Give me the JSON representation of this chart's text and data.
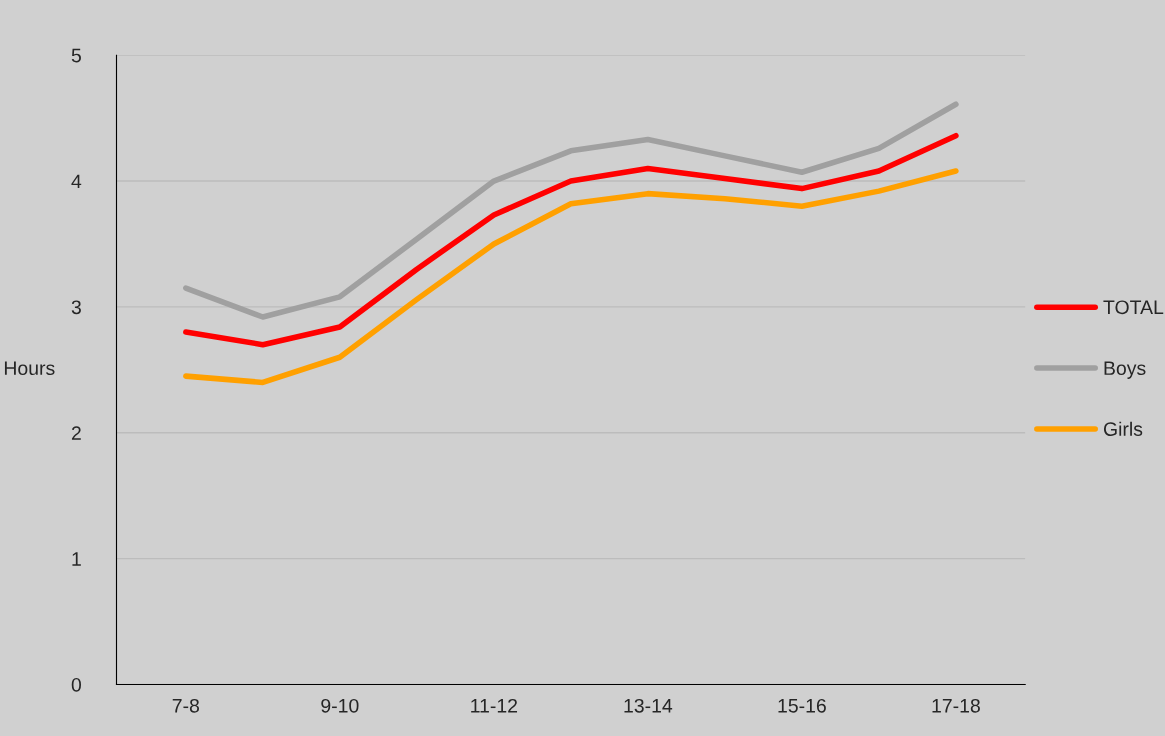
{
  "chart_data": {
    "type": "line",
    "ylabel": "Hours",
    "categories": [
      "7-8",
      null,
      "9-10",
      null,
      "11-12",
      null,
      "13-14",
      null,
      "15-16",
      null,
      "17-18"
    ],
    "series": [
      {
        "name": "TOTAL",
        "color": "#ff0000",
        "values": [
          2.8,
          2.7,
          2.84,
          3.3,
          3.73,
          4.0,
          4.1,
          4.02,
          3.94,
          4.08,
          4.36
        ]
      },
      {
        "name": "Boys",
        "color": "#a0a0a0",
        "values": [
          3.15,
          2.92,
          3.08,
          3.54,
          4.0,
          4.24,
          4.33,
          4.2,
          4.07,
          4.26,
          4.61
        ]
      },
      {
        "name": "Girls",
        "color": "#ffa000",
        "values": [
          2.45,
          2.4,
          2.6,
          3.06,
          3.5,
          3.82,
          3.9,
          3.86,
          3.8,
          3.92,
          4.08
        ]
      }
    ],
    "ylim": [
      0,
      5
    ],
    "yticks": [
      0,
      1,
      2,
      3,
      4,
      5
    ],
    "grid": "y",
    "legend": "right"
  }
}
